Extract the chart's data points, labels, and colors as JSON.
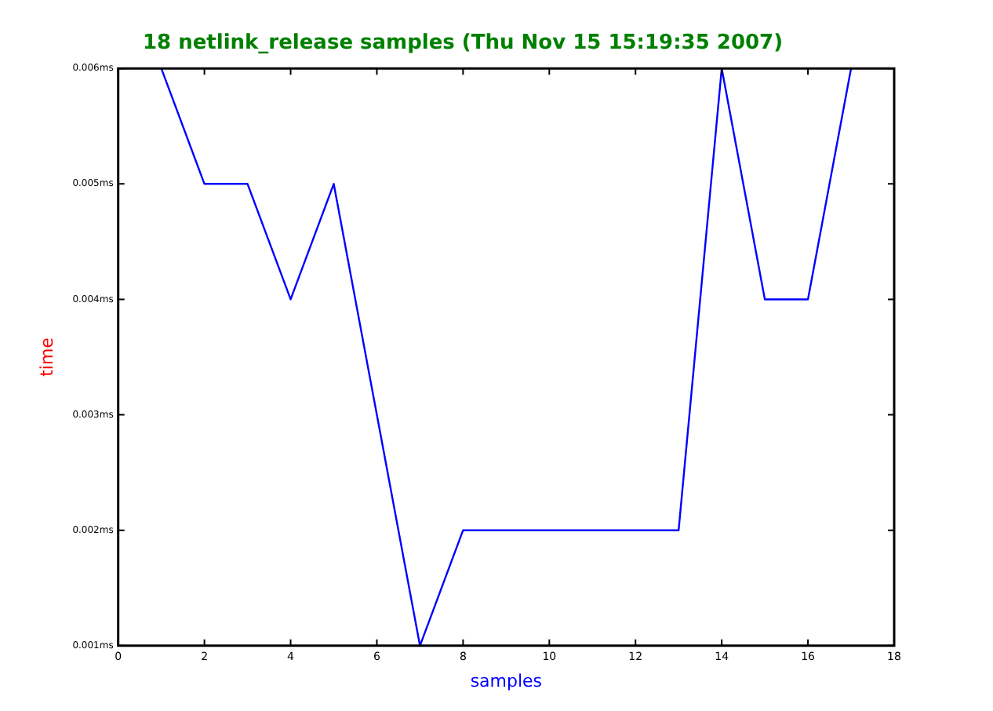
{
  "chart_data": {
    "type": "line",
    "title": "18 netlink_release samples (Thu Nov 15 15:19:35 2007)",
    "xlabel": "samples",
    "ylabel": "time",
    "x": [
      1,
      2,
      3,
      4,
      5,
      6,
      7,
      8,
      9,
      10,
      11,
      12,
      13,
      14,
      15,
      16,
      17
    ],
    "series": [
      {
        "color": "#0000ff",
        "values": [
          0.006,
          0.005,
          0.005,
          0.004,
          0.005,
          0.003,
          0.001,
          0.002,
          0.002,
          0.002,
          0.002,
          0.002,
          0.002,
          0.006,
          0.004,
          0.004,
          0.006
        ]
      }
    ],
    "xlim": [
      0,
      18
    ],
    "xticks": [
      0,
      2,
      4,
      6,
      8,
      10,
      12,
      14,
      16,
      18
    ],
    "ylim": [
      0.001,
      0.006
    ],
    "yticks": [
      {
        "value": 0.001,
        "label": "0.001ms"
      },
      {
        "value": 0.002,
        "label": "0.002ms"
      },
      {
        "value": 0.003,
        "label": "0.003ms"
      },
      {
        "value": 0.004,
        "label": "0.004ms"
      },
      {
        "value": 0.005,
        "label": "0.005ms"
      },
      {
        "value": 0.006,
        "label": "0.006ms"
      }
    ],
    "grid": false,
    "legend": false,
    "marker": "none",
    "line_style": "solid"
  }
}
